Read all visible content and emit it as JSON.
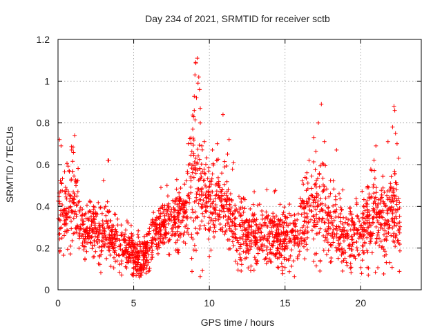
{
  "chart_data": {
    "type": "scatter",
    "title": "Day 234 of 2021, SRMTID for receiver sctb",
    "xlabel": "GPS time / hours",
    "ylabel": "SRMTID / TECUs",
    "xlim": [
      0,
      24
    ],
    "ylim": [
      0,
      1.2
    ],
    "x_ticks": [
      0,
      5,
      10,
      15,
      20
    ],
    "x_tick_labels": [
      "0",
      "5",
      "10",
      "15",
      "20"
    ],
    "y_ticks": [
      0,
      0.2,
      0.4,
      0.6,
      0.8,
      1.0,
      1.2
    ],
    "y_tick_labels": [
      "0",
      "0.2",
      "0.4",
      "0.6",
      "0.8",
      "1",
      "1.2"
    ],
    "grid": true,
    "marker": "+",
    "marker_color": "#ff0000",
    "series": [
      {
        "name": "sctb",
        "x_range": [
          0,
          22.6
        ],
        "profile": [
          [
            0.0,
            0.36,
            0.1
          ],
          [
            0.5,
            0.38,
            0.1
          ],
          [
            1.0,
            0.46,
            0.11
          ],
          [
            1.5,
            0.3,
            0.08
          ],
          [
            2.0,
            0.27,
            0.07
          ],
          [
            2.5,
            0.28,
            0.07
          ],
          [
            3.0,
            0.26,
            0.08
          ],
          [
            3.5,
            0.24,
            0.08
          ],
          [
            4.0,
            0.21,
            0.06
          ],
          [
            4.5,
            0.19,
            0.06
          ],
          [
            5.0,
            0.17,
            0.05
          ],
          [
            5.5,
            0.14,
            0.04
          ],
          [
            6.0,
            0.2,
            0.06
          ],
          [
            6.5,
            0.28,
            0.06
          ],
          [
            7.0,
            0.3,
            0.06
          ],
          [
            7.5,
            0.33,
            0.06
          ],
          [
            8.0,
            0.35,
            0.08
          ],
          [
            8.5,
            0.42,
            0.09
          ],
          [
            9.0,
            0.55,
            0.18
          ],
          [
            9.5,
            0.45,
            0.12
          ],
          [
            10.0,
            0.42,
            0.1
          ],
          [
            10.5,
            0.44,
            0.1
          ],
          [
            11.0,
            0.4,
            0.09
          ],
          [
            11.5,
            0.36,
            0.09
          ],
          [
            12.0,
            0.27,
            0.08
          ],
          [
            12.5,
            0.25,
            0.07
          ],
          [
            13.0,
            0.25,
            0.07
          ],
          [
            13.5,
            0.27,
            0.07
          ],
          [
            14.0,
            0.25,
            0.07
          ],
          [
            14.5,
            0.25,
            0.07
          ],
          [
            15.0,
            0.23,
            0.07
          ],
          [
            15.5,
            0.24,
            0.07
          ],
          [
            16.0,
            0.3,
            0.08
          ],
          [
            16.5,
            0.37,
            0.1
          ],
          [
            17.0,
            0.4,
            0.11
          ],
          [
            17.5,
            0.38,
            0.11
          ],
          [
            18.0,
            0.32,
            0.1
          ],
          [
            18.5,
            0.27,
            0.09
          ],
          [
            19.0,
            0.25,
            0.08
          ],
          [
            19.5,
            0.26,
            0.08
          ],
          [
            20.0,
            0.27,
            0.09
          ],
          [
            20.5,
            0.32,
            0.1
          ],
          [
            21.0,
            0.36,
            0.11
          ],
          [
            21.5,
            0.34,
            0.1
          ],
          [
            22.0,
            0.36,
            0.11
          ],
          [
            22.6,
            0.34,
            0.1
          ]
        ],
        "n_points": 2300,
        "peaks": [
          [
            9.2,
            1.11
          ],
          [
            9.1,
            1.09
          ],
          [
            9.05,
            1.03
          ],
          [
            9.3,
            1.02
          ],
          [
            9.25,
            0.99
          ],
          [
            9.35,
            0.96
          ],
          [
            9.15,
            0.92
          ],
          [
            9.4,
            0.87
          ],
          [
            9.0,
            0.86
          ],
          [
            8.95,
            0.83
          ],
          [
            9.4,
            0.8
          ],
          [
            8.9,
            0.77
          ],
          [
            8.6,
            0.7
          ],
          [
            9.5,
            0.69
          ],
          [
            10.9,
            0.84
          ],
          [
            11.3,
            0.72
          ],
          [
            11.2,
            0.65
          ],
          [
            11.6,
            0.61
          ],
          [
            10.2,
            0.67
          ],
          [
            10.5,
            0.62
          ],
          [
            17.4,
            0.89
          ],
          [
            17.2,
            0.8
          ],
          [
            16.9,
            0.73
          ],
          [
            17.6,
            0.71
          ],
          [
            18.4,
            0.67
          ],
          [
            22.2,
            0.88
          ],
          [
            22.25,
            0.86
          ],
          [
            22.1,
            0.78
          ],
          [
            22.3,
            0.75
          ],
          [
            22.4,
            0.7
          ],
          [
            21.8,
            0.71
          ],
          [
            21.0,
            0.69
          ],
          [
            1.1,
            0.74
          ],
          [
            0.1,
            0.72
          ],
          [
            0.2,
            0.69
          ],
          [
            0.9,
            0.67
          ],
          [
            3.3,
            0.62
          ],
          [
            3.35,
            0.62
          ],
          [
            6.8,
            0.49
          ],
          [
            7.2,
            0.5
          ],
          [
            13.8,
            0.48
          ],
          [
            14.3,
            0.47
          ],
          [
            5.4,
            0.06
          ],
          [
            5.5,
            0.07
          ],
          [
            20.5,
            0.07
          ],
          [
            17.3,
            0.09
          ],
          [
            18.8,
            0.09
          ],
          [
            12.1,
            0.09
          ]
        ]
      }
    ]
  }
}
